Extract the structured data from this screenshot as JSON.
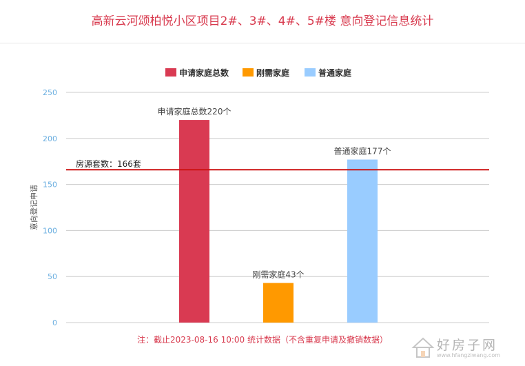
{
  "page": {
    "title": "高新云河颂柏悦小区项目2#、3#、4#、5#楼 意向登记信息统计",
    "footnote": "注：截止2023-08-16 10:00 统计数据（不含重复申请及撤销数据）",
    "watermark_text": "好房子网",
    "watermark_url": "www.hfangziwang.com"
  },
  "chart_data": {
    "type": "bar",
    "title": "",
    "ylabel": "意向登记申请",
    "ylim": [
      0,
      250
    ],
    "yticks": [
      0,
      50,
      100,
      150,
      200,
      250
    ],
    "grid": true,
    "legend_position": "top-center",
    "legend": [
      {
        "label": "申请家庭总数",
        "color": "#d93a52"
      },
      {
        "label": "刚需家庭",
        "color": "#ff9900"
      },
      {
        "label": "普通家庭",
        "color": "#99ccff"
      }
    ],
    "bars": [
      {
        "series": "申请家庭总数",
        "value": 220,
        "color": "#d93a52",
        "label": "申请家庭总数220个"
      },
      {
        "series": "刚需家庭",
        "value": 43,
        "color": "#ff9900",
        "label": "刚需家庭43个"
      },
      {
        "series": "普通家庭",
        "value": 177,
        "color": "#99ccff",
        "label": "普通家庭177个"
      }
    ],
    "reference_line": {
      "value": 166,
      "label": "房源套数：166套",
      "color": "#cc1111"
    }
  },
  "colors": {
    "title": "#d83a4e",
    "tick": "#6aaee0",
    "grid": "#cccccc"
  }
}
